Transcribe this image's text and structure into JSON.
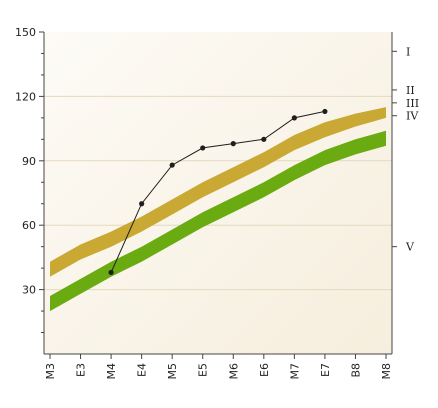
{
  "chart_data": {
    "type": "line",
    "categories": [
      "M3",
      "E3",
      "M4",
      "E4",
      "M5",
      "E5",
      "M6",
      "E6",
      "M7",
      "E7",
      "B8",
      "M8"
    ],
    "ylim": [
      0,
      150
    ],
    "yticks": [
      30,
      60,
      90,
      120,
      150
    ],
    "grid": "horizontal",
    "bands": [
      {
        "name": "upper band",
        "color": "#c9a833",
        "low": [
          36,
          44,
          50,
          57,
          65,
          73,
          80,
          87,
          95,
          101,
          106,
          110
        ],
        "high": [
          43,
          51,
          57,
          64,
          72,
          80,
          87,
          94,
          102,
          108,
          112,
          115
        ]
      },
      {
        "name": "lower band",
        "color": "#6aab11",
        "low": [
          20,
          28,
          36,
          43,
          51,
          59,
          66,
          73,
          81,
          88,
          93,
          97
        ],
        "high": [
          27,
          35,
          43,
          50,
          58,
          66,
          73,
          80,
          88,
          95,
          100,
          104
        ]
      }
    ],
    "series": [
      {
        "color": "#1e1e1e",
        "x": [
          "M4",
          "E4",
          "M5",
          "E5",
          "M6",
          "E6",
          "M7",
          "E7"
        ],
        "values": [
          38,
          70,
          88,
          96,
          98,
          100,
          110,
          113
        ]
      }
    ],
    "right_axis": {
      "labels": [
        {
          "label": "I",
          "value": 141
        },
        {
          "label": "II",
          "value": 123
        },
        {
          "label": "III",
          "value": 117
        },
        {
          "label": "IV",
          "value": 111
        },
        {
          "label": "V",
          "value": 50
        }
      ]
    }
  }
}
